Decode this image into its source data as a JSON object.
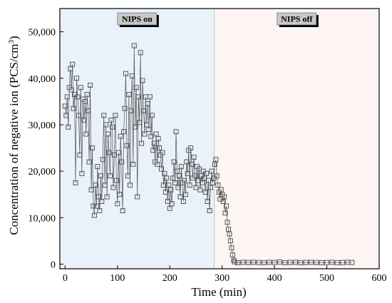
{
  "chart_data": {
    "type": "scatter",
    "xlabel": "Time (min)",
    "ylabel": "Concentration of negative ion (PCS/cm",
    "ylabel_sup": "3",
    "ylabel_close": ")",
    "xlim": [
      -10,
      600
    ],
    "ylim": [
      -1000,
      55000
    ],
    "x_ticks": [
      0,
      100,
      200,
      300,
      400,
      500,
      600
    ],
    "x_tick_labels": [
      "0",
      "100",
      "200",
      "300",
      "400",
      "500",
      "600"
    ],
    "y_ticks": [
      0,
      10000,
      20000,
      30000,
      40000,
      50000
    ],
    "y_tick_labels": [
      "0",
      "10,000",
      "20,000",
      "30,000",
      "40,000",
      "50,000"
    ],
    "regions": [
      {
        "label": "NIPS on",
        "x_start": -10,
        "x_end": 285,
        "color": "#e9f2fb"
      },
      {
        "label": "NIPS off",
        "x_start": 285,
        "x_end": 600,
        "color": "#fdf4f4"
      }
    ],
    "marker_color": "#555555",
    "grid": false,
    "series": [
      {
        "values_xy": [
          [
            0,
            34000
          ],
          [
            2,
            32000
          ],
          [
            4,
            36000
          ],
          [
            6,
            29500
          ],
          [
            8,
            38000
          ],
          [
            10,
            42000
          ],
          [
            12,
            37500
          ],
          [
            14,
            43000
          ],
          [
            16,
            33500
          ],
          [
            18,
            36500
          ],
          [
            20,
            17500
          ],
          [
            22,
            40000
          ],
          [
            24,
            36000
          ],
          [
            26,
            32000
          ],
          [
            28,
            23500
          ],
          [
            30,
            38000
          ],
          [
            32,
            19500
          ],
          [
            34,
            35500
          ],
          [
            36,
            31000
          ],
          [
            38,
            35000
          ],
          [
            40,
            28000
          ],
          [
            42,
            36500
          ],
          [
            44,
            33000
          ],
          [
            46,
            22000
          ],
          [
            48,
            38500
          ],
          [
            50,
            16000
          ],
          [
            52,
            25000
          ],
          [
            54,
            12500
          ],
          [
            56,
            10500
          ],
          [
            58,
            17000
          ],
          [
            60,
            12500
          ],
          [
            62,
            21000
          ],
          [
            64,
            14500
          ],
          [
            66,
            11500
          ],
          [
            68,
            19000
          ],
          [
            70,
            13500
          ],
          [
            72,
            22500
          ],
          [
            74,
            32000
          ],
          [
            76,
            17000
          ],
          [
            78,
            30000
          ],
          [
            80,
            14500
          ],
          [
            82,
            28000
          ],
          [
            84,
            24000
          ],
          [
            86,
            19000
          ],
          [
            88,
            31000
          ],
          [
            90,
            29500
          ],
          [
            92,
            16500
          ],
          [
            94,
            23500
          ],
          [
            96,
            32000
          ],
          [
            98,
            18000
          ],
          [
            100,
            13000
          ],
          [
            102,
            24000
          ],
          [
            104,
            15000
          ],
          [
            106,
            27500
          ],
          [
            108,
            22000
          ],
          [
            110,
            11500
          ],
          [
            112,
            28500
          ],
          [
            114,
            33500
          ],
          [
            116,
            41000
          ],
          [
            118,
            25500
          ],
          [
            120,
            19000
          ],
          [
            122,
            36500
          ],
          [
            124,
            17000
          ],
          [
            126,
            33000
          ],
          [
            128,
            40500
          ],
          [
            130,
            21500
          ],
          [
            132,
            47000
          ],
          [
            134,
            29500
          ],
          [
            136,
            38000
          ],
          [
            138,
            14500
          ],
          [
            140,
            36000
          ],
          [
            142,
            30500
          ],
          [
            144,
            45500
          ],
          [
            146,
            26000
          ],
          [
            148,
            39500
          ],
          [
            150,
            33000
          ],
          [
            152,
            28000
          ],
          [
            154,
            36000
          ],
          [
            156,
            30000
          ],
          [
            158,
            34500
          ],
          [
            160,
            29000
          ],
          [
            162,
            36000
          ],
          [
            164,
            27500
          ],
          [
            166,
            32000
          ],
          [
            168,
            24500
          ],
          [
            170,
            26000
          ],
          [
            172,
            22000
          ],
          [
            174,
            28000
          ],
          [
            176,
            21500
          ],
          [
            178,
            27000
          ],
          [
            180,
            25000
          ],
          [
            182,
            23500
          ],
          [
            184,
            20500
          ],
          [
            186,
            24000
          ],
          [
            188,
            17000
          ],
          [
            190,
            19500
          ],
          [
            192,
            15500
          ],
          [
            194,
            18500
          ],
          [
            196,
            13500
          ],
          [
            198,
            17000
          ],
          [
            200,
            12000
          ],
          [
            202,
            16000
          ],
          [
            204,
            13000
          ],
          [
            206,
            18500
          ],
          [
            208,
            22000
          ],
          [
            210,
            17500
          ],
          [
            212,
            28500
          ],
          [
            214,
            20000
          ],
          [
            216,
            16500
          ],
          [
            218,
            19000
          ],
          [
            220,
            14500
          ],
          [
            222,
            21000
          ],
          [
            224,
            17500
          ],
          [
            226,
            13500
          ],
          [
            228,
            18000
          ],
          [
            230,
            15000
          ],
          [
            232,
            22000
          ],
          [
            234,
            19500
          ],
          [
            236,
            24500
          ],
          [
            238,
            17000
          ],
          [
            240,
            25000
          ],
          [
            242,
            21500
          ],
          [
            244,
            18500
          ],
          [
            246,
            23000
          ],
          [
            248,
            19000
          ],
          [
            250,
            16500
          ],
          [
            252,
            21000
          ],
          [
            254,
            18000
          ],
          [
            256,
            20500
          ],
          [
            258,
            16000
          ],
          [
            260,
            19000
          ],
          [
            262,
            17500
          ],
          [
            264,
            20000
          ],
          [
            266,
            18500
          ],
          [
            268,
            15500
          ],
          [
            270,
            19500
          ],
          [
            272,
            13500
          ],
          [
            274,
            18000
          ],
          [
            276,
            11500
          ],
          [
            278,
            16500
          ],
          [
            280,
            20000
          ],
          [
            282,
            17500
          ],
          [
            284,
            18500
          ],
          [
            286,
            21500
          ],
          [
            288,
            22500
          ],
          [
            290,
            19000
          ],
          [
            292,
            17000
          ],
          [
            294,
            15500
          ],
          [
            296,
            14000
          ],
          [
            298,
            16000
          ],
          [
            300,
            15000
          ],
          [
            302,
            13500
          ],
          [
            304,
            14500
          ],
          [
            306,
            11000
          ],
          [
            308,
            12500
          ],
          [
            310,
            9000
          ],
          [
            312,
            7500
          ],
          [
            314,
            6500
          ],
          [
            316,
            5000
          ],
          [
            318,
            3500
          ],
          [
            320,
            2000
          ],
          [
            322,
            800
          ],
          [
            324,
            500
          ],
          [
            330,
            300
          ],
          [
            340,
            400
          ],
          [
            350,
            350
          ],
          [
            360,
            400
          ],
          [
            370,
            350
          ],
          [
            380,
            300
          ],
          [
            390,
            400
          ],
          [
            400,
            350
          ],
          [
            410,
            450
          ],
          [
            420,
            300
          ],
          [
            430,
            350
          ],
          [
            440,
            400
          ],
          [
            450,
            300
          ],
          [
            460,
            350
          ],
          [
            470,
            400
          ],
          [
            480,
            350
          ],
          [
            490,
            300
          ],
          [
            500,
            350
          ],
          [
            510,
            400
          ],
          [
            520,
            300
          ],
          [
            530,
            350
          ],
          [
            540,
            400
          ],
          [
            548,
            350
          ]
        ]
      }
    ]
  }
}
